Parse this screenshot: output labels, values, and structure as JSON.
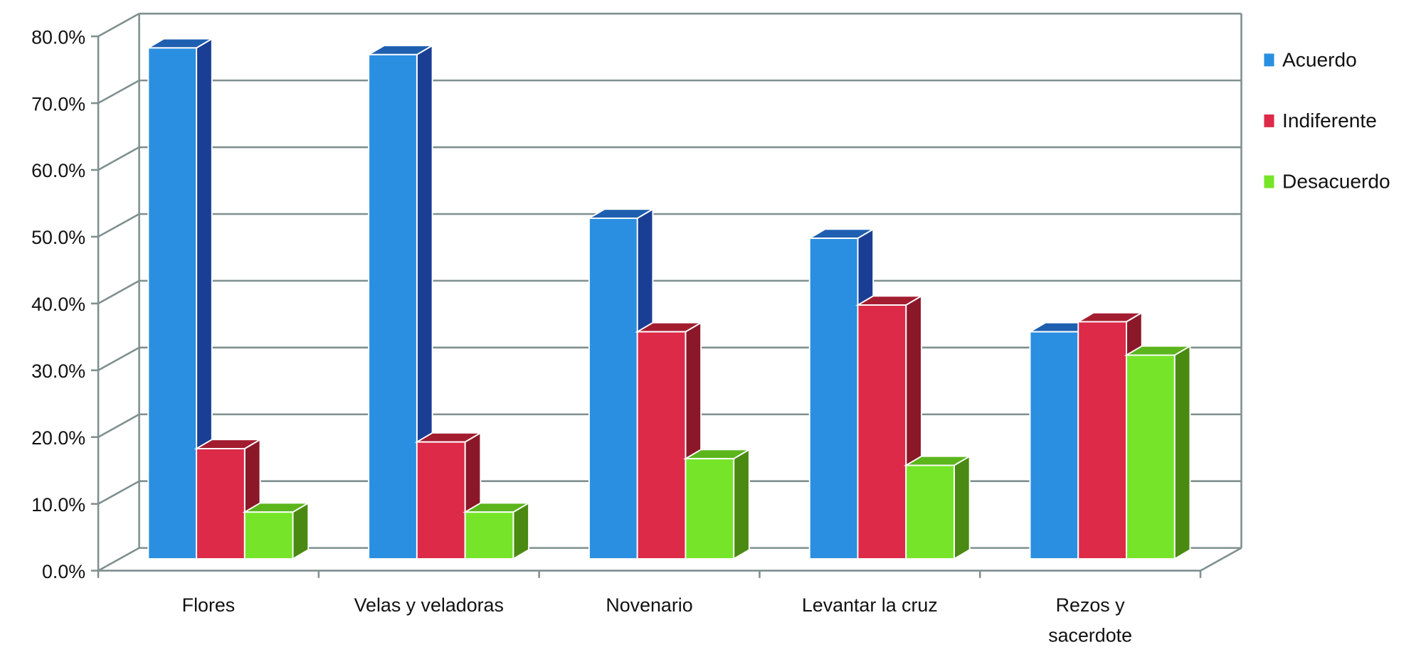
{
  "chart_data": {
    "type": "bar",
    "style": "3d-clustered-column",
    "title": "",
    "xlabel": "",
    "ylabel": "",
    "categories": [
      [
        "Flores"
      ],
      [
        "Velas y veladoras"
      ],
      [
        "Novenario"
      ],
      [
        "Levantar la cruz"
      ],
      [
        "Rezos y",
        "sacerdote"
      ]
    ],
    "series": [
      {
        "name": "Acuerdo",
        "color": "#2A8FE0",
        "side": "#1A3E94",
        "top": "#1E5FB0",
        "values": [
          76.5,
          75.5,
          51.0,
          48.0,
          34.0
        ]
      },
      {
        "name": "Indiferente",
        "color": "#DC2A48",
        "side": "#8A1828",
        "top": "#A31D30",
        "values": [
          16.5,
          17.5,
          34.0,
          38.0,
          35.5
        ]
      },
      {
        "name": "Desacuerdo",
        "color": "#76E52A",
        "side": "#4A8A12",
        "top": "#5BB51C",
        "values": [
          7.0,
          7.0,
          15.0,
          14.0,
          30.5
        ]
      }
    ],
    "ylim": [
      0,
      80
    ],
    "yticks": [
      "0.0%",
      "10.0%",
      "20.0%",
      "30.0%",
      "40.0%",
      "50.0%",
      "60.0%",
      "70.0%",
      "80.0%"
    ],
    "grid": true,
    "legend": "right",
    "grid_color": "#7F8F8F"
  }
}
